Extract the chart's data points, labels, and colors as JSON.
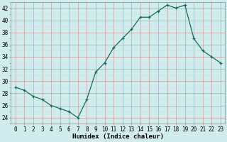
{
  "x": [
    0,
    1,
    2,
    3,
    4,
    5,
    6,
    7,
    8,
    9,
    10,
    11,
    12,
    13,
    14,
    15,
    16,
    17,
    18,
    19,
    20,
    21,
    22,
    23
  ],
  "y": [
    29,
    28.5,
    27.5,
    27,
    26,
    25.5,
    25,
    24,
    27,
    31.5,
    33,
    35.5,
    37,
    38.5,
    40.5,
    40.5,
    41.5,
    42.5,
    42,
    42.5,
    37,
    35,
    34,
    33
  ],
  "line_color": "#1a6b5a",
  "marker": "+",
  "bg_color": "#d0ecec",
  "grid_major_color": "#c8a0a0",
  "grid_minor_color": "#c8dede",
  "xlabel": "Humidex (Indice chaleur)",
  "xlim": [
    -0.5,
    23.5
  ],
  "ylim": [
    23,
    43
  ],
  "yticks": [
    24,
    26,
    28,
    30,
    32,
    34,
    36,
    38,
    40,
    42
  ],
  "xtick_labels": [
    "0",
    "1",
    "2",
    "3",
    "4",
    "5",
    "6",
    "7",
    "8",
    "9",
    "10",
    "11",
    "12",
    "13",
    "14",
    "15",
    "16",
    "17",
    "18",
    "19",
    "20",
    "21",
    "22",
    "23"
  ],
  "tick_fontsize": 5.5,
  "xlabel_fontsize": 6.5
}
